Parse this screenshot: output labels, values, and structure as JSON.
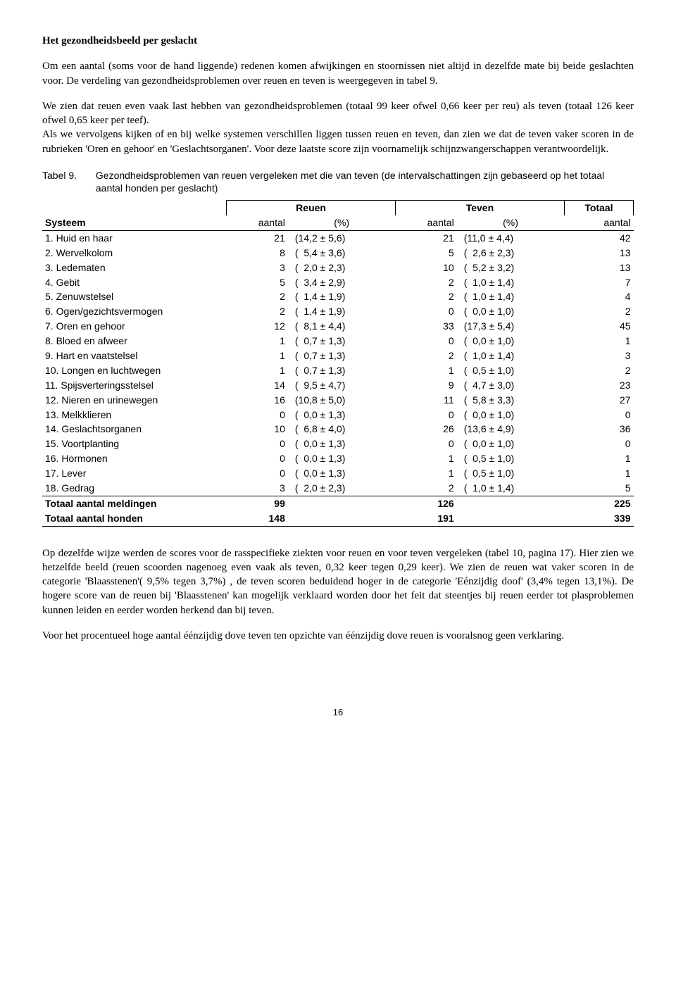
{
  "heading": "Het gezondheidsbeeld per geslacht",
  "para1": "Om een aantal (soms voor de hand liggende) redenen komen afwijkingen en stoornissen niet altijd in dezelfde mate bij beide geslachten voor. De verdeling van gezondheidsproblemen over reuen en teven is weergegeven in tabel 9.",
  "para2": "We zien dat reuen even vaak last hebben van gezondheidsproblemen (totaal 99 keer ofwel 0,66 keer per reu) als teven (totaal 126 keer ofwel 0,65 keer per teef).",
  "para3": "Als we vervolgens kijken of en bij welke systemen verschillen liggen tussen reuen en teven, dan zien we dat de teven vaker scoren in de rubrieken 'Oren en gehoor' en 'Geslachtsorganen'. Voor deze laatste score zijn voornamelijk schijnzwangerschappen verantwoordelijk.",
  "table_label": "Tabel 9.",
  "table_desc": "Gezondheidsproblemen van reuen vergeleken met die van teven (de intervalschattingen zijn gebaseerd op het totaal aantal honden per geslacht)",
  "headers": {
    "systeem": "Systeem",
    "reuen": "Reuen",
    "teven": "Teven",
    "totaal": "Totaal",
    "aantal": "aantal",
    "pct": "(%)"
  },
  "rows": [
    {
      "s": "1. Huid en haar",
      "ra": "21",
      "rp": "(14,2 ± 5,6)",
      "ta": "21",
      "tp": "(11,0 ± 4,4)",
      "tot": "42"
    },
    {
      "s": "2. Wervelkolom",
      "ra": "8",
      "rp": "(  5,4 ± 3,6)",
      "ta": "5",
      "tp": "(  2,6 ± 2,3)",
      "tot": "13"
    },
    {
      "s": "3. Ledematen",
      "ra": "3",
      "rp": "(  2,0 ± 2,3)",
      "ta": "10",
      "tp": "(  5,2 ± 3,2)",
      "tot": "13"
    },
    {
      "s": "4. Gebit",
      "ra": "5",
      "rp": "(  3,4 ± 2,9)",
      "ta": "2",
      "tp": "(  1,0 ± 1,4)",
      "tot": "7"
    },
    {
      "s": "5. Zenuwstelsel",
      "ra": "2",
      "rp": "(  1,4 ± 1,9)",
      "ta": "2",
      "tp": "(  1,0 ± 1,4)",
      "tot": "4"
    },
    {
      "s": "6. Ogen/gezichtsvermogen",
      "ra": "2",
      "rp": "(  1,4 ± 1,9)",
      "ta": "0",
      "tp": "(  0,0 ± 1,0)",
      "tot": "2"
    },
    {
      "s": "7. Oren en gehoor",
      "ra": "12",
      "rp": "(  8,1 ± 4,4)",
      "ta": "33",
      "tp": "(17,3 ± 5,4)",
      "tot": "45"
    },
    {
      "s": "8. Bloed en afweer",
      "ra": "1",
      "rp": "(  0,7 ± 1,3)",
      "ta": "0",
      "tp": "(  0,0 ± 1,0)",
      "tot": "1"
    },
    {
      "s": "9. Hart en vaatstelsel",
      "ra": "1",
      "rp": "(  0,7 ± 1,3)",
      "ta": "2",
      "tp": "(  1,0 ± 1,4)",
      "tot": "3"
    },
    {
      "s": "10. Longen en luchtwegen",
      "ra": "1",
      "rp": "(  0,7 ± 1,3)",
      "ta": "1",
      "tp": "(  0,5 ± 1,0)",
      "tot": "2"
    },
    {
      "s": "11. Spijsverteringsstelsel",
      "ra": "14",
      "rp": "(  9,5 ± 4,7)",
      "ta": "9",
      "tp": "(  4,7 ± 3,0)",
      "tot": "23"
    },
    {
      "s": "12. Nieren en urinewegen",
      "ra": "16",
      "rp": "(10,8 ± 5,0)",
      "ta": "11",
      "tp": "(  5,8 ± 3,3)",
      "tot": "27"
    },
    {
      "s": "13. Melkklieren",
      "ra": "0",
      "rp": "(  0,0 ± 1,3)",
      "ta": "0",
      "tp": "(  0,0 ± 1,0)",
      "tot": "0"
    },
    {
      "s": "14. Geslachtsorganen",
      "ra": "10",
      "rp": "(  6,8 ± 4,0)",
      "ta": "26",
      "tp": "(13,6 ± 4,9)",
      "tot": "36"
    },
    {
      "s": "15. Voortplanting",
      "ra": "0",
      "rp": "(  0,0 ± 1,3)",
      "ta": "0",
      "tp": "(  0,0 ± 1,0)",
      "tot": "0"
    },
    {
      "s": "16. Hormonen",
      "ra": "0",
      "rp": "(  0,0 ± 1,3)",
      "ta": "1",
      "tp": "(  0,5 ± 1,0)",
      "tot": "1"
    },
    {
      "s": "17. Lever",
      "ra": "0",
      "rp": "(  0,0 ± 1,3)",
      "ta": "1",
      "tp": "(  0,5 ± 1,0)",
      "tot": "1"
    },
    {
      "s": "18. Gedrag",
      "ra": "3",
      "rp": "(  2,0 ± 2,3)",
      "ta": "2",
      "tp": "(  1,0 ± 1,4)",
      "tot": "5"
    }
  ],
  "totals": [
    {
      "s": "Totaal aantal meldingen",
      "ra": "99",
      "ta": "126",
      "tot": "225"
    },
    {
      "s": "Totaal aantal honden",
      "ra": "148",
      "ta": "191",
      "tot": "339"
    }
  ],
  "para4": "Op dezelfde wijze werden de scores voor de rasspecifieke ziekten voor reuen en voor teven vergeleken (tabel 10, pagina 17). Hier zien we hetzelfde beeld (reuen scoorden nagenoeg even vaak als teven, 0,32 keer tegen 0,29 keer). We zien de reuen wat vaker scoren in de categorie 'Blaasstenen'( 9,5% tegen 3,7%) , de teven scoren beduidend hoger in de categorie 'Eénzijdig doof' (3,4% tegen 13,1%). De hogere score van de reuen bij 'Blaasstenen' kan mogelijk verklaard worden door het feit dat steentjes bij reuen eerder tot plasproblemen kunnen leiden en eerder worden herkend dan bij teven.",
  "para5": "Voor het procentueel hoge aantal éénzijdig dove teven ten opzichte van éénzijdig dove reuen is vooralsnog geen verklaring.",
  "page_num": "16"
}
